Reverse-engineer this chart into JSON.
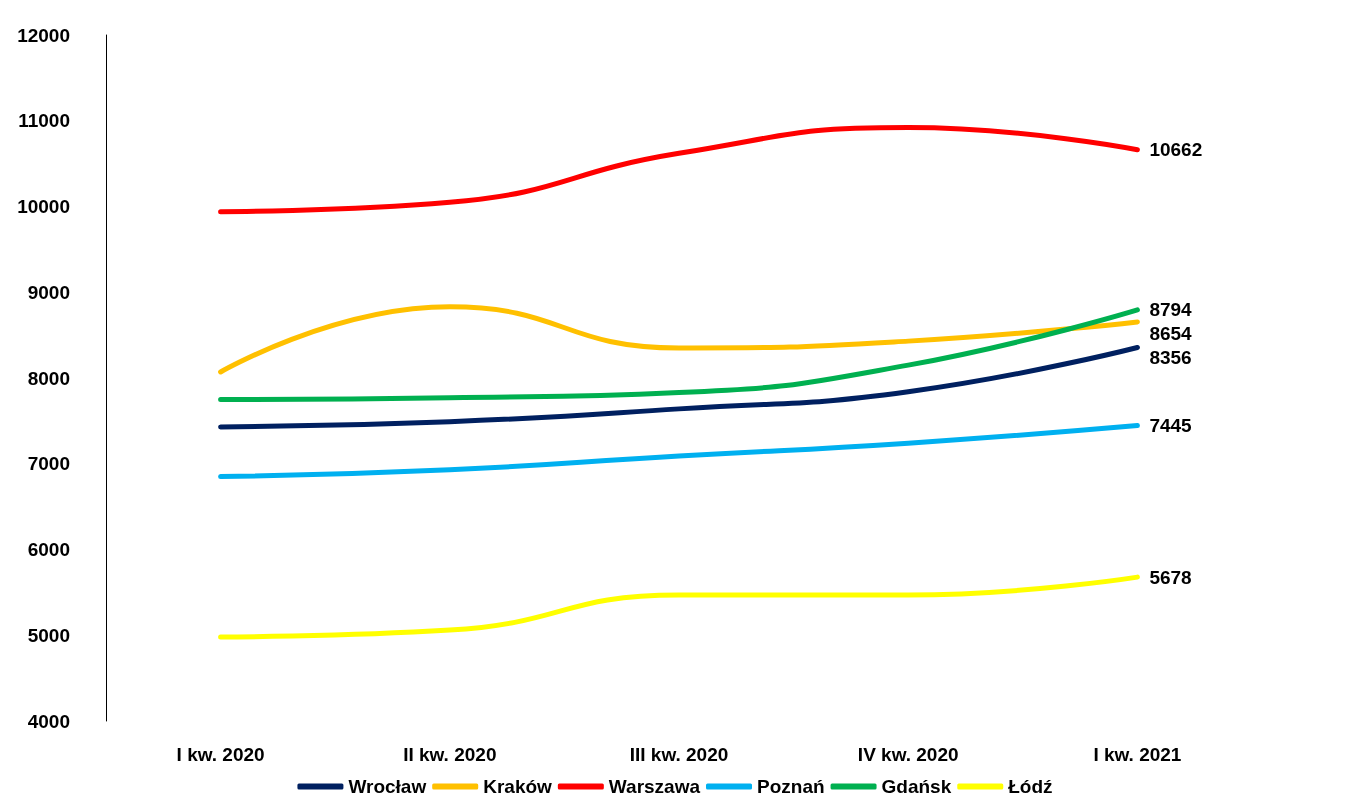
{
  "chart_data": {
    "type": "line",
    "categories": [
      "I kw. 2020",
      "II kw. 2020",
      "III kw. 2020",
      "IV kw. 2020",
      "I kw. 2021"
    ],
    "ylim": [
      4000,
      12000
    ],
    "yticks": [
      4000,
      5000,
      6000,
      7000,
      8000,
      9000,
      10000,
      11000,
      12000
    ],
    "grid": false,
    "legend": "bottom",
    "marker": "none",
    "line_style": "solid",
    "series": [
      {
        "name": "Wrocław",
        "color": "#002060",
        "values": [
          7430,
          7490,
          7640,
          7840,
          8356
        ],
        "value_labels": [
          null,
          null,
          null,
          null,
          "8356"
        ]
      },
      {
        "name": "Kraków",
        "color": "#ffc000",
        "values": [
          8070,
          8830,
          8350,
          8430,
          8654
        ],
        "value_labels": [
          null,
          null,
          null,
          null,
          "8654"
        ]
      },
      {
        "name": "Warszawa",
        "color": "#ff0000",
        "values": [
          9940,
          10050,
          10620,
          10920,
          10662
        ],
        "value_labels": [
          null,
          null,
          null,
          null,
          "10662"
        ]
      },
      {
        "name": "Poznań",
        "color": "#00b0f0",
        "values": [
          6850,
          6930,
          7090,
          7240,
          7445
        ],
        "value_labels": [
          null,
          null,
          null,
          null,
          "7445"
        ]
      },
      {
        "name": "Gdańsk",
        "color": "#00b050",
        "values": [
          7750,
          7770,
          7830,
          8150,
          8794
        ],
        "value_labels": [
          null,
          null,
          null,
          null,
          "8794"
        ]
      },
      {
        "name": "Łódź",
        "color": "#ffff00",
        "values": [
          4980,
          5060,
          5470,
          5470,
          5678
        ],
        "value_labels": [
          null,
          null,
          null,
          null,
          "5678"
        ]
      }
    ]
  }
}
